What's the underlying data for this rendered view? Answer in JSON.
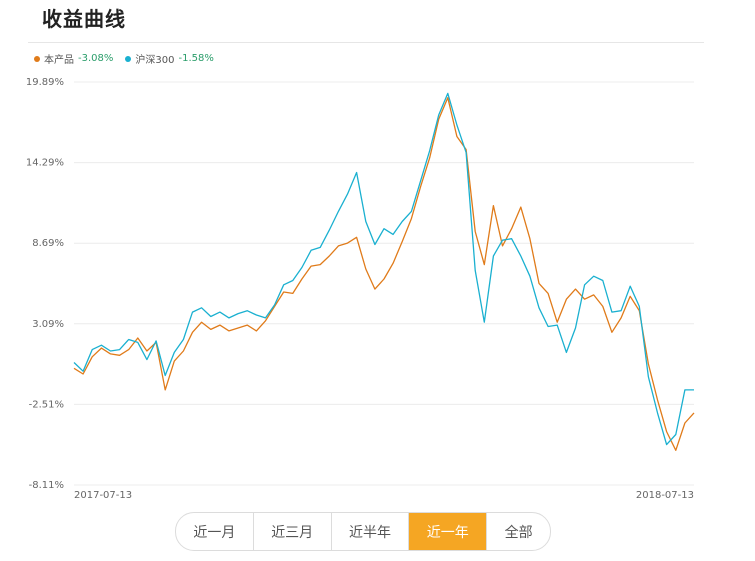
{
  "header": {
    "title": "收益曲线"
  },
  "colors": {
    "product": "#e07b1a",
    "index": "#1ab0d0",
    "positive": "#2a9d6a",
    "grid": "#ececec",
    "tab_active": "#f5a623"
  },
  "chart_data": {
    "type": "line",
    "ylim": [
      -8.11,
      19.89
    ],
    "y_ticks": [
      "19.89%",
      "14.29%",
      "8.69%",
      "3.09%",
      "-2.51%",
      "-8.11%"
    ],
    "x_labels": [
      "2017-07-13",
      "2018-07-13"
    ],
    "x_range": [
      "2017-07-13",
      "2018-07-13"
    ],
    "series": [
      {
        "name": "本产品",
        "value_label": "-3.08%",
        "color": "#e07b1a",
        "values": [
          [
            0,
            0.0
          ],
          [
            1,
            -0.4
          ],
          [
            2,
            0.8
          ],
          [
            3,
            1.4
          ],
          [
            4,
            1.0
          ],
          [
            5,
            0.9
          ],
          [
            6,
            1.3
          ],
          [
            7,
            2.1
          ],
          [
            8,
            1.2
          ],
          [
            9,
            1.8
          ],
          [
            10,
            -1.5
          ],
          [
            11,
            0.5
          ],
          [
            12,
            1.2
          ],
          [
            13,
            2.5
          ],
          [
            14,
            3.2
          ],
          [
            15,
            2.7
          ],
          [
            16,
            3.0
          ],
          [
            17,
            2.6
          ],
          [
            18,
            2.8
          ],
          [
            19,
            3.0
          ],
          [
            20,
            2.6
          ],
          [
            21,
            3.3
          ],
          [
            22,
            4.3
          ],
          [
            23,
            5.3
          ],
          [
            24,
            5.2
          ],
          [
            25,
            6.2
          ],
          [
            26,
            7.1
          ],
          [
            27,
            7.2
          ],
          [
            28,
            7.8
          ],
          [
            29,
            8.5
          ],
          [
            30,
            8.7
          ],
          [
            31,
            9.1
          ],
          [
            32,
            6.9
          ],
          [
            33,
            5.5
          ],
          [
            34,
            6.2
          ],
          [
            35,
            7.3
          ],
          [
            36,
            8.8
          ],
          [
            37,
            10.4
          ],
          [
            38,
            12.6
          ],
          [
            39,
            14.6
          ],
          [
            40,
            17.3
          ],
          [
            41,
            18.8
          ],
          [
            42,
            16.1
          ],
          [
            43,
            15.2
          ],
          [
            44,
            9.5
          ],
          [
            45,
            7.2
          ],
          [
            46,
            11.3
          ],
          [
            47,
            8.5
          ],
          [
            48,
            9.7
          ],
          [
            49,
            11.2
          ],
          [
            50,
            9.0
          ],
          [
            51,
            5.9
          ],
          [
            52,
            5.2
          ],
          [
            53,
            3.2
          ],
          [
            54,
            4.8
          ],
          [
            55,
            5.5
          ],
          [
            56,
            4.8
          ],
          [
            57,
            5.1
          ],
          [
            58,
            4.3
          ],
          [
            59,
            2.5
          ],
          [
            60,
            3.5
          ],
          [
            61,
            5.0
          ],
          [
            62,
            4.0
          ],
          [
            63,
            0.3
          ],
          [
            64,
            -2.2
          ],
          [
            65,
            -4.4
          ],
          [
            66,
            -5.7
          ],
          [
            67,
            -3.8
          ],
          [
            68,
            -3.1
          ]
        ]
      },
      {
        "name": "沪深300",
        "value_label": "-1.58%",
        "color": "#1ab0d0",
        "values": [
          [
            0,
            0.4
          ],
          [
            1,
            -0.2
          ],
          [
            2,
            1.3
          ],
          [
            3,
            1.6
          ],
          [
            4,
            1.2
          ],
          [
            5,
            1.3
          ],
          [
            6,
            2.0
          ],
          [
            7,
            1.8
          ],
          [
            8,
            0.6
          ],
          [
            9,
            1.9
          ],
          [
            10,
            -0.5
          ],
          [
            11,
            1.1
          ],
          [
            12,
            2.0
          ],
          [
            13,
            3.9
          ],
          [
            14,
            4.2
          ],
          [
            15,
            3.6
          ],
          [
            16,
            3.9
          ],
          [
            17,
            3.5
          ],
          [
            18,
            3.8
          ],
          [
            19,
            4.0
          ],
          [
            20,
            3.7
          ],
          [
            21,
            3.5
          ],
          [
            22,
            4.4
          ],
          [
            23,
            5.8
          ],
          [
            24,
            6.1
          ],
          [
            25,
            7.0
          ],
          [
            26,
            8.2
          ],
          [
            27,
            8.4
          ],
          [
            28,
            9.6
          ],
          [
            29,
            10.9
          ],
          [
            30,
            12.1
          ],
          [
            31,
            13.6
          ],
          [
            32,
            10.2
          ],
          [
            33,
            8.6
          ],
          [
            34,
            9.7
          ],
          [
            35,
            9.3
          ],
          [
            36,
            10.2
          ],
          [
            37,
            10.9
          ],
          [
            38,
            13.0
          ],
          [
            39,
            15.1
          ],
          [
            40,
            17.6
          ],
          [
            41,
            19.1
          ],
          [
            42,
            16.9
          ],
          [
            43,
            15.0
          ],
          [
            44,
            6.8
          ],
          [
            45,
            3.2
          ],
          [
            46,
            7.8
          ],
          [
            47,
            8.9
          ],
          [
            48,
            9.0
          ],
          [
            49,
            7.8
          ],
          [
            50,
            6.4
          ],
          [
            51,
            4.2
          ],
          [
            52,
            2.9
          ],
          [
            53,
            3.0
          ],
          [
            54,
            1.1
          ],
          [
            55,
            2.8
          ],
          [
            56,
            5.8
          ],
          [
            57,
            6.4
          ],
          [
            58,
            6.1
          ],
          [
            59,
            3.9
          ],
          [
            60,
            4.0
          ],
          [
            61,
            5.7
          ],
          [
            62,
            4.3
          ],
          [
            63,
            -0.6
          ],
          [
            64,
            -3.1
          ],
          [
            65,
            -5.3
          ],
          [
            66,
            -4.6
          ],
          [
            67,
            -1.5
          ],
          [
            68,
            -1.5
          ]
        ]
      }
    ]
  },
  "tabs": [
    {
      "label": "近一月",
      "active": false
    },
    {
      "label": "近三月",
      "active": false
    },
    {
      "label": "近半年",
      "active": false
    },
    {
      "label": "近一年",
      "active": true
    },
    {
      "label": "全部",
      "active": false
    }
  ]
}
